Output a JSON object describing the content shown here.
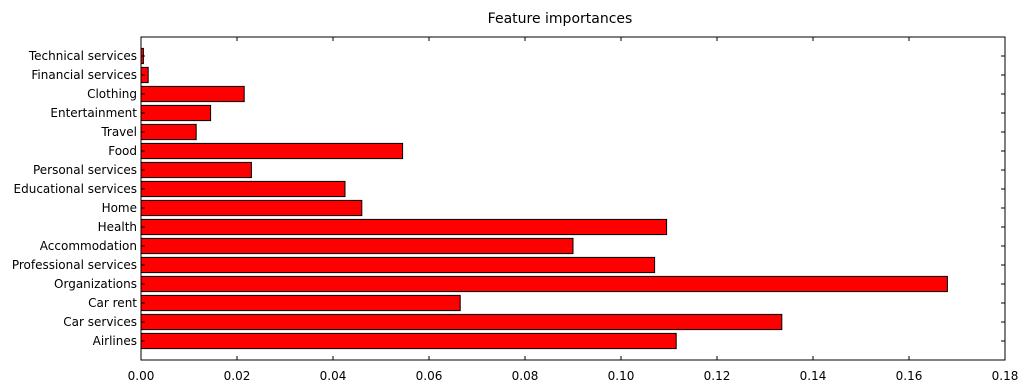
{
  "chart_data": {
    "type": "bar",
    "orientation": "horizontal",
    "title": "Feature importances",
    "xlabel": "",
    "ylabel": "",
    "xlim": [
      0,
      0.18
    ],
    "xticks": [
      0.0,
      0.02,
      0.04,
      0.06,
      0.08,
      0.1,
      0.12,
      0.14,
      0.16,
      0.18
    ],
    "xtick_labels": [
      "0.00",
      "0.02",
      "0.04",
      "0.06",
      "0.08",
      "0.10",
      "0.12",
      "0.14",
      "0.16",
      "0.18"
    ],
    "categories": [
      "Airlines",
      "Car services",
      "Car rent",
      "Organizations",
      "Professional services",
      "Accommodation",
      "Health",
      "Home",
      "Educational services",
      "Personal services",
      "Food",
      "Travel",
      "Entertainment",
      "Clothing",
      "Financial services",
      "Technical services"
    ],
    "values": [
      0.1115,
      0.1335,
      0.0665,
      0.168,
      0.107,
      0.09,
      0.1095,
      0.046,
      0.0425,
      0.023,
      0.0545,
      0.0115,
      0.0145,
      0.0215,
      0.0015,
      0.0005
    ],
    "bar_color": "#ff0000",
    "grid": false,
    "legend": "none"
  }
}
